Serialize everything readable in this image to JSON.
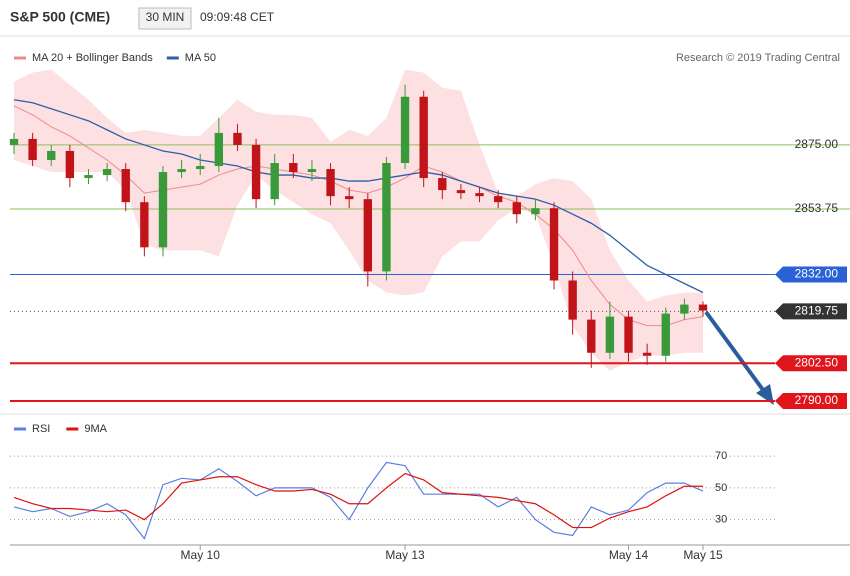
{
  "header": {
    "title": "S&P 500 (CME)",
    "interval": "30 MIN",
    "time": "09:09:48 CET",
    "credit": "Research © 2019 Trading Central"
  },
  "chart_data": [
    {
      "type": "candlestick",
      "legend": [
        {
          "name": "MA 20 + Bollinger Bands",
          "color": "#f08a8a"
        },
        {
          "name": "MA 50",
          "color": "#2b5fa8"
        }
      ],
      "open": [
        2875,
        2877,
        2870,
        2873,
        2864,
        2865,
        2867,
        2856,
        2841,
        2866,
        2867,
        2868,
        2879,
        2875,
        2857,
        2869,
        2866,
        2867,
        2858,
        2857,
        2833,
        2869,
        2891,
        2864,
        2860,
        2859,
        2858,
        2856,
        2852,
        2854,
        2830,
        2817,
        2806,
        2818,
        2806,
        2805,
        2819,
        2822
      ],
      "high": [
        2879,
        2879,
        2875,
        2875,
        2867,
        2869,
        2869,
        2858,
        2868,
        2870,
        2872,
        2884,
        2882,
        2877,
        2872,
        2872,
        2870,
        2869,
        2861,
        2859,
        2871,
        2895,
        2893,
        2866,
        2862,
        2861,
        2860,
        2858,
        2857,
        2856,
        2833,
        2820,
        2823,
        2820,
        2809,
        2821,
        2824,
        2823
      ],
      "low": [
        2872,
        2868,
        2868,
        2861,
        2862,
        2863,
        2853,
        2838,
        2838,
        2864,
        2865,
        2866,
        2873,
        2854,
        2855,
        2864,
        2863,
        2855,
        2854,
        2828,
        2830,
        2867,
        2861,
        2857,
        2857,
        2856,
        2854,
        2849,
        2850,
        2827,
        2812,
        2801,
        2804,
        2803,
        2802,
        2803,
        2817,
        2818
      ],
      "close": [
        2877,
        2870,
        2873,
        2864,
        2865,
        2867,
        2856,
        2841,
        2866,
        2867,
        2868,
        2879,
        2875,
        2857,
        2869,
        2866,
        2867,
        2858,
        2857,
        2833,
        2869,
        2891,
        2864,
        2860,
        2859,
        2858,
        2856,
        2852,
        2854,
        2830,
        2817,
        2806,
        2818,
        2806,
        2805,
        2819,
        2822,
        2820
      ],
      "up_color": "#3a9a3a",
      "down_color": "#c0131a",
      "band_upper": [
        2896,
        2899,
        2900,
        2895,
        2890,
        2884,
        2879,
        2880,
        2879,
        2878,
        2878,
        2884,
        2890,
        2886,
        2885,
        2885,
        2884,
        2876,
        2880,
        2878,
        2884,
        2900,
        2899,
        2894,
        2893,
        2875,
        2859,
        2858,
        2862,
        2864,
        2863,
        2857,
        2840,
        2830,
        2823,
        2825,
        2826,
        2826
      ],
      "band_lower": [
        2870,
        2868,
        2866,
        2866,
        2866,
        2866,
        2860,
        2842,
        2840,
        2840,
        2840,
        2838,
        2855,
        2865,
        2860,
        2856,
        2852,
        2849,
        2840,
        2830,
        2826,
        2825,
        2826,
        2838,
        2843,
        2843,
        2850,
        2854,
        2852,
        2835,
        2815,
        2806,
        2800,
        2803,
        2805,
        2805,
        2806,
        2806
      ],
      "band_color": "#fde0e2",
      "ma20": [
        2888,
        2885,
        2881,
        2878,
        2874,
        2870,
        2865,
        2859,
        2860,
        2861,
        2862,
        2865,
        2867,
        2868,
        2867,
        2866,
        2865,
        2863,
        2860,
        2859,
        2861,
        2864,
        2868,
        2866,
        2863,
        2861,
        2858,
        2856,
        2852,
        2847,
        2840,
        2830,
        2822,
        2817,
        2815,
        2815,
        2817,
        2818
      ],
      "ma50": [
        2890,
        2889,
        2887,
        2885,
        2883,
        2880,
        2877,
        2875,
        2873,
        2872,
        2870,
        2869,
        2868,
        2866,
        2865,
        2865,
        2864,
        2864,
        2863,
        2863,
        2864,
        2865,
        2866,
        2865,
        2863,
        2861,
        2859,
        2858,
        2857,
        2855,
        2852,
        2849,
        2845,
        2840,
        2835,
        2832,
        2829,
        2826
      ],
      "ylim": [
        2786,
        2903.2
      ],
      "levels": [
        {
          "value": 2875,
          "label": "2875.00",
          "color": "#8fbf5a",
          "boxed": false
        },
        {
          "value": 2853.75,
          "label": "2853.75",
          "color": "#8fbf5a",
          "boxed": false
        },
        {
          "value": 2832,
          "label": "2832.00",
          "color": "#2a62d6",
          "boxed": true
        },
        {
          "value": 2819.75,
          "label": "2819.75",
          "color": "#333333",
          "boxed": true
        },
        {
          "value": 2802.5,
          "label": "2802.50",
          "color": "#e0141b",
          "boxed": true
        },
        {
          "value": 2790,
          "label": "2790.00",
          "color": "#e0141b",
          "boxed": true
        }
      ]
    },
    {
      "type": "line",
      "categories": [
        null,
        null,
        null,
        null,
        null,
        null,
        null,
        null,
        null,
        null,
        "May 10",
        null,
        null,
        null,
        null,
        null,
        null,
        null,
        null,
        null,
        null,
        "May 13",
        null,
        null,
        null,
        null,
        null,
        null,
        null,
        null,
        null,
        null,
        null,
        "May 14",
        null,
        null,
        null,
        "May 15"
      ],
      "series": [
        {
          "name": "RSI",
          "color": "#5b7fe0",
          "values": [
            38,
            35,
            37,
            32,
            35,
            40,
            33,
            18,
            52,
            56,
            55,
            62,
            54,
            45,
            50,
            50,
            50,
            44,
            30,
            50,
            66,
            64,
            46,
            46,
            46,
            46,
            38,
            44,
            30,
            22,
            20,
            38,
            33,
            36,
            47,
            53,
            53,
            48
          ]
        },
        {
          "name": "9MA",
          "color": "#e01010",
          "values": [
            44,
            40,
            37,
            37,
            36,
            35,
            36,
            30,
            40,
            53,
            55,
            57,
            57,
            52,
            48,
            48,
            49,
            46,
            40,
            40,
            50,
            59,
            55,
            47,
            46,
            45,
            44,
            42,
            40,
            33,
            25,
            25,
            31,
            35,
            38,
            45,
            51,
            51
          ]
        }
      ],
      "ylim": [
        14,
        77
      ],
      "yticks": [
        30,
        50,
        70
      ],
      "grid": true
    }
  ]
}
